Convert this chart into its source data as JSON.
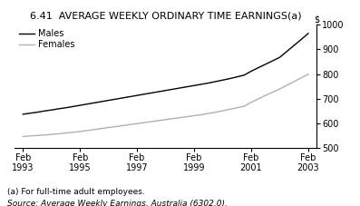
{
  "title": "6.41  AVERAGE WEEKLY ORDINARY TIME EARNINGS(a)",
  "ylabel": "$",
  "ylim": [
    500,
    1000
  ],
  "yticks": [
    500,
    600,
    700,
    800,
    900,
    1000
  ],
  "xtick_labels": [
    "Feb\n1993",
    "Feb\n1995",
    "Feb\n1997",
    "Feb\n1999",
    "Feb\n2001",
    "Feb\n2003"
  ],
  "xtick_positions": [
    1993,
    1995,
    1997,
    1999,
    2001,
    2003
  ],
  "legend_males": "Males",
  "legend_females": "Females",
  "footnote1": "(a) For full-time adult employees.",
  "footnote2": "Source: Average Weekly Earnings, Australia (6302.0).",
  "males_x": [
    1993.0,
    1993.25,
    1993.5,
    1993.75,
    1994.0,
    1994.25,
    1994.5,
    1994.75,
    1995.0,
    1995.25,
    1995.5,
    1995.75,
    1996.0,
    1996.25,
    1996.5,
    1996.75,
    1997.0,
    1997.25,
    1997.5,
    1997.75,
    1998.0,
    1998.25,
    1998.5,
    1998.75,
    1999.0,
    1999.25,
    1999.5,
    1999.75,
    2000.0,
    2000.25,
    2000.5,
    2000.75,
    2001.0,
    2001.25,
    2001.5,
    2001.75,
    2002.0,
    2002.25,
    2002.5,
    2002.75,
    2003.0
  ],
  "males_y": [
    638,
    642,
    646,
    651,
    655,
    660,
    664,
    669,
    674,
    679,
    684,
    689,
    694,
    699,
    704,
    709,
    714,
    719,
    724,
    729,
    734,
    739,
    744,
    749,
    754,
    759,
    764,
    770,
    776,
    782,
    789,
    796,
    812,
    826,
    840,
    854,
    868,
    892,
    916,
    940,
    965
  ],
  "females_x": [
    1993.0,
    1993.25,
    1993.5,
    1993.75,
    1994.0,
    1994.25,
    1994.5,
    1994.75,
    1995.0,
    1995.25,
    1995.5,
    1995.75,
    1996.0,
    1996.25,
    1996.5,
    1996.75,
    1997.0,
    1997.25,
    1997.5,
    1997.75,
    1998.0,
    1998.25,
    1998.5,
    1998.75,
    1999.0,
    1999.25,
    1999.5,
    1999.75,
    2000.0,
    2000.25,
    2000.5,
    2000.75,
    2001.0,
    2001.25,
    2001.5,
    2001.75,
    2002.0,
    2002.25,
    2002.5,
    2002.75,
    2003.0
  ],
  "females_y": [
    548,
    550,
    552,
    554,
    556,
    559,
    562,
    565,
    568,
    572,
    576,
    580,
    584,
    588,
    592,
    596,
    600,
    604,
    608,
    612,
    616,
    620,
    624,
    628,
    632,
    636,
    641,
    646,
    652,
    658,
    664,
    670,
    686,
    700,
    714,
    727,
    740,
    755,
    770,
    785,
    800
  ],
  "males_color": "#000000",
  "females_color": "#b0b0b0",
  "bg_color": "#ffffff",
  "title_fontsize": 8,
  "tick_fontsize": 7,
  "legend_fontsize": 7,
  "footnote_fontsize": 6.5,
  "line_width": 1.0
}
